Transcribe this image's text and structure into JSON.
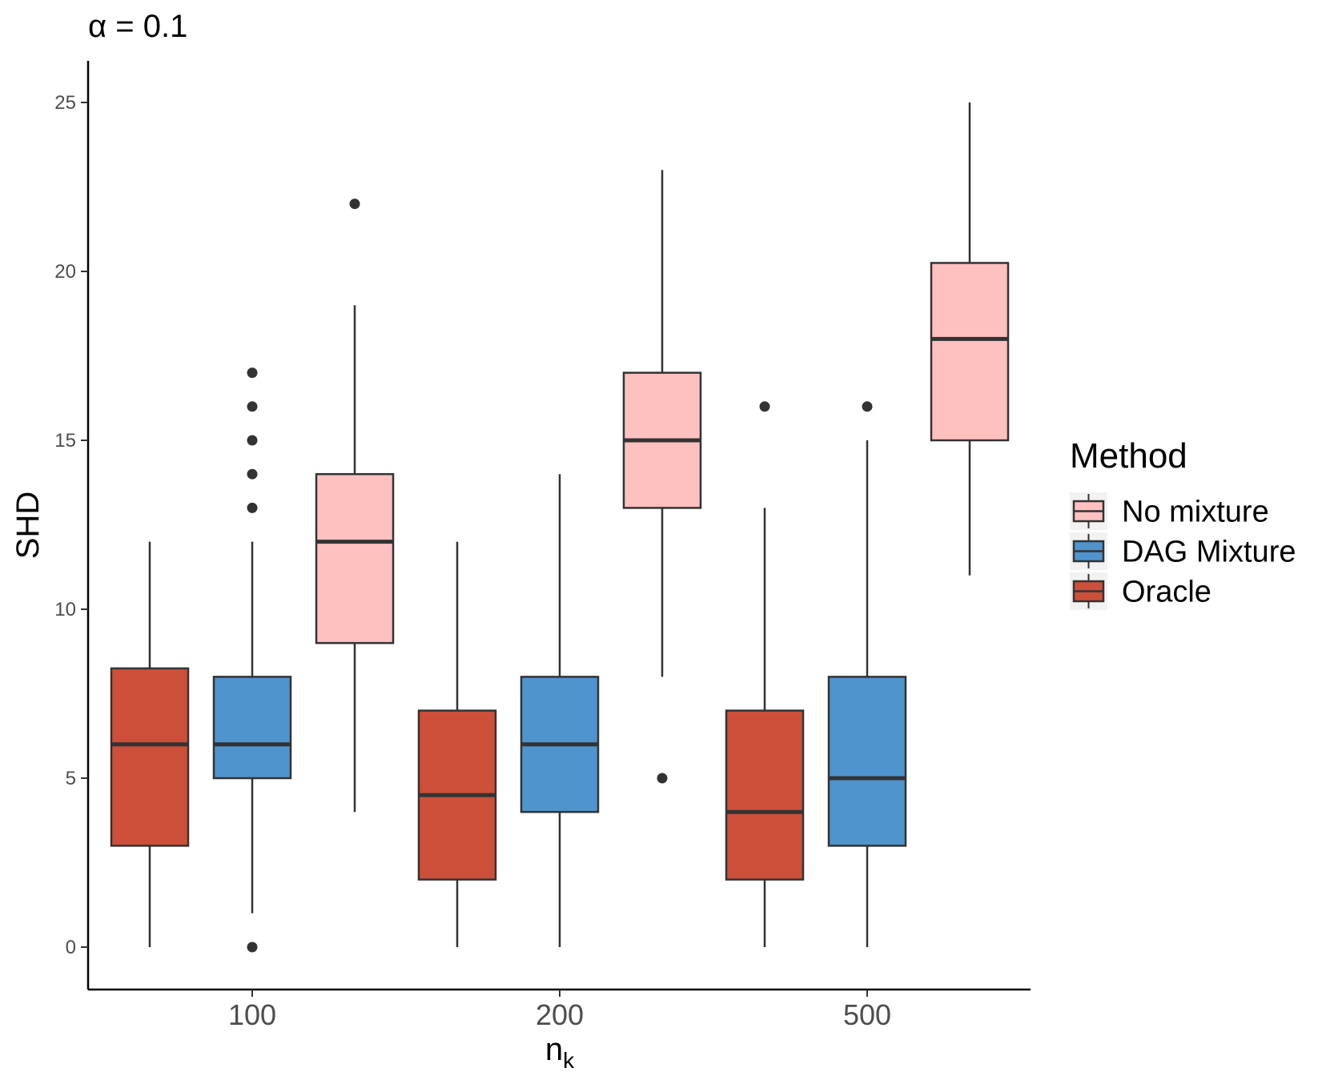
{
  "chart_data": {
    "type": "boxplot",
    "title": "α = 0.1",
    "xlabel": "n",
    "xlabel_subscript": "k",
    "ylabel": "SHD",
    "ylim": [
      -1.25,
      26.25
    ],
    "yticks": [
      0,
      5,
      10,
      15,
      20,
      25
    ],
    "ytick_labels": [
      "0",
      "5",
      "10",
      "15",
      "20",
      "25"
    ],
    "categories": [
      "100",
      "200",
      "500"
    ],
    "legend": {
      "title": "Method",
      "position": "right",
      "entries": [
        "No mixture",
        "DAG Mixture",
        "Oracle"
      ]
    },
    "colors": {
      "No mixture": "#FFC0C0",
      "DAG Mixture": "#4F94CD",
      "Oracle": "#CD4F39",
      "outline": "#333333"
    },
    "series": [
      {
        "name": "Oracle",
        "boxes": [
          {
            "category": "100",
            "whisker_low": 0,
            "q1": 3,
            "median": 6,
            "q3": 8.25,
            "whisker_high": 12,
            "outliers": []
          },
          {
            "category": "200",
            "whisker_low": 0,
            "q1": 2,
            "median": 4.5,
            "q3": 7,
            "whisker_high": 12,
            "outliers": []
          },
          {
            "category": "500",
            "whisker_low": 0,
            "q1": 2,
            "median": 4,
            "q3": 7,
            "whisker_high": 13,
            "outliers": [
              16
            ]
          }
        ]
      },
      {
        "name": "DAG Mixture",
        "boxes": [
          {
            "category": "100",
            "whisker_low": 1,
            "q1": 5,
            "median": 6,
            "q3": 8,
            "whisker_high": 12,
            "outliers": [
              0,
              13,
              14,
              15,
              16,
              17
            ]
          },
          {
            "category": "200",
            "whisker_low": 0,
            "q1": 4,
            "median": 6,
            "q3": 8,
            "whisker_high": 14,
            "outliers": []
          },
          {
            "category": "500",
            "whisker_low": 0,
            "q1": 3,
            "median": 5,
            "q3": 8,
            "whisker_high": 15,
            "outliers": [
              16
            ]
          }
        ]
      },
      {
        "name": "No mixture",
        "boxes": [
          {
            "category": "100",
            "whisker_low": 4,
            "q1": 9,
            "median": 12,
            "q3": 14,
            "whisker_high": 19,
            "outliers": [
              22
            ]
          },
          {
            "category": "200",
            "whisker_low": 8,
            "q1": 13,
            "median": 15,
            "q3": 17,
            "whisker_high": 23,
            "outliers": [
              5
            ]
          },
          {
            "category": "500",
            "whisker_low": 11,
            "q1": 15,
            "median": 18,
            "q3": 20.25,
            "whisker_high": 25,
            "outliers": []
          }
        ]
      }
    ]
  }
}
